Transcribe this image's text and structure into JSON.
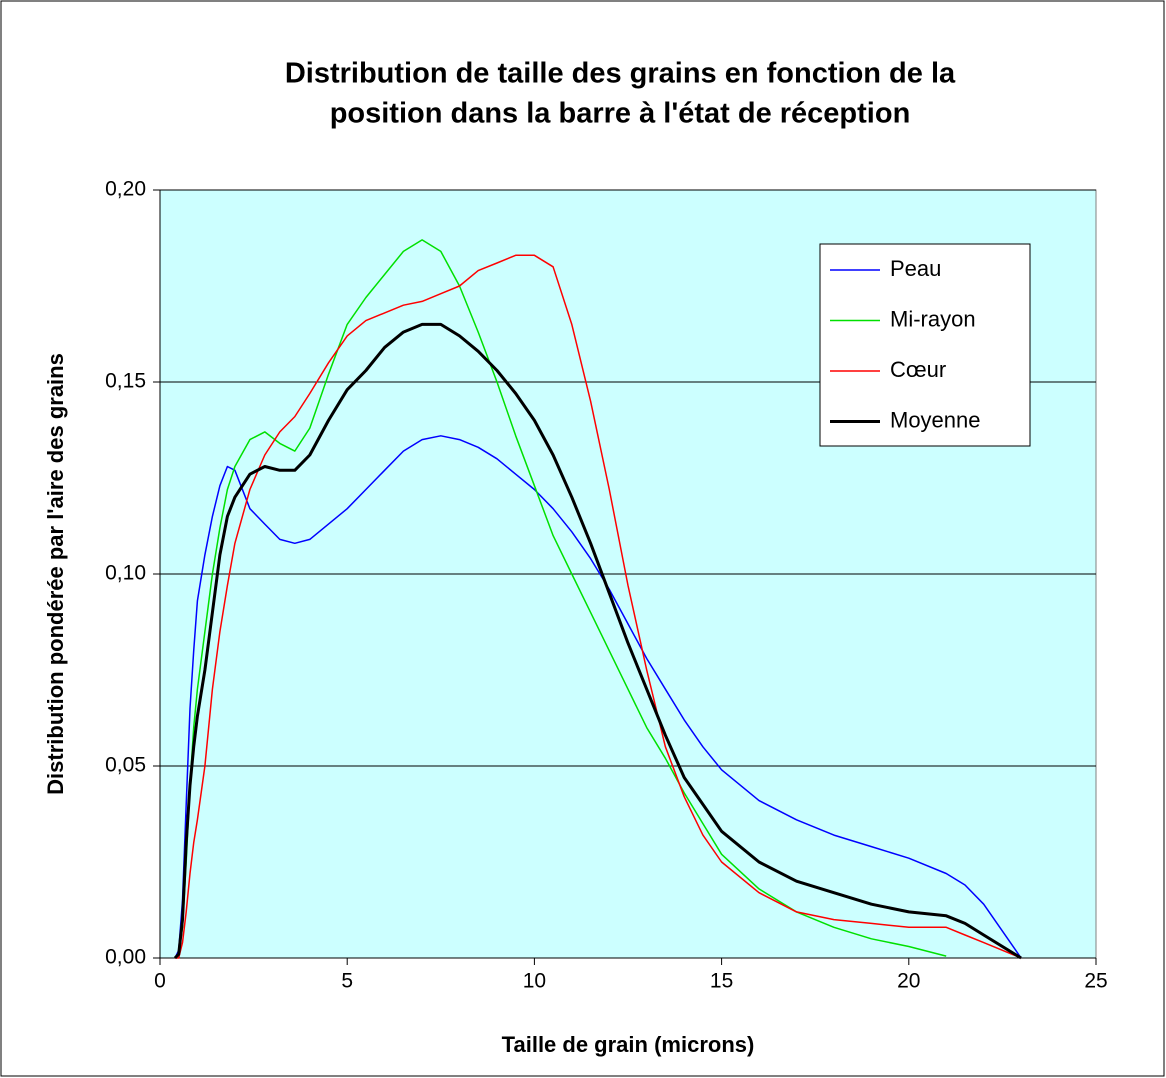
{
  "chart_data": {
    "type": "line",
    "title": [
      "Distribution de taille des grains en fonction de la",
      "position dans la barre à l'état de réception"
    ],
    "xlabel": "Taille de grain (microns)",
    "ylabel": "Distribution pondérée par l'aire des grains",
    "x": [
      0.4,
      0.5,
      0.6,
      0.7,
      0.8,
      0.9,
      1.0,
      1.2,
      1.4,
      1.6,
      1.8,
      2.0,
      2.4,
      2.8,
      3.2,
      3.6,
      4.0,
      4.5,
      5,
      5.5,
      6,
      6.5,
      7,
      7.5,
      8,
      8.5,
      9,
      9.5,
      10,
      10.5,
      11,
      11.5,
      12,
      12.5,
      13,
      13.5,
      14,
      14.5,
      15,
      16,
      17,
      18,
      19,
      20,
      21,
      21.5,
      22,
      23
    ],
    "series": [
      {
        "name": "Peau",
        "color": "#0000ff",
        "width": 1.5,
        "values": [
          0,
          0.002,
          0.015,
          0.04,
          0.065,
          0.08,
          0.093,
          0.105,
          0.115,
          0.123,
          0.128,
          0.127,
          0.117,
          0.113,
          0.109,
          0.108,
          0.109,
          0.113,
          0.117,
          0.122,
          0.127,
          0.132,
          0.135,
          0.136,
          0.135,
          0.133,
          0.13,
          0.126,
          0.122,
          0.117,
          0.111,
          0.104,
          0.096,
          0.087,
          0.078,
          0.07,
          0.062,
          0.055,
          0.049,
          0.041,
          0.036,
          0.032,
          0.029,
          0.026,
          0.022,
          0.019,
          0.014,
          0
        ]
      },
      {
        "name": "Mi-rayon",
        "color": "#00e000",
        "width": 1.5,
        "values": [
          0,
          0.001,
          0.008,
          0.025,
          0.045,
          0.06,
          0.07,
          0.085,
          0.1,
          0.112,
          0.122,
          0.128,
          0.135,
          0.137,
          0.134,
          0.132,
          0.138,
          0.152,
          0.165,
          0.172,
          0.178,
          0.184,
          0.187,
          0.184,
          0.175,
          0.163,
          0.15,
          0.136,
          0.123,
          0.11,
          0.1,
          0.09,
          0.08,
          0.07,
          0.06,
          0.052,
          0.043,
          0.035,
          0.027,
          0.018,
          0.012,
          0.008,
          0.005,
          0.003,
          0.0005,
          null,
          null,
          null
        ]
      },
      {
        "name": "Cœur",
        "color": "#ff0000",
        "width": 1.5,
        "values": [
          0,
          0,
          0.004,
          0.012,
          0.022,
          0.03,
          0.036,
          0.05,
          0.07,
          0.085,
          0.097,
          0.108,
          0.122,
          0.131,
          0.137,
          0.141,
          0.147,
          0.155,
          0.162,
          0.166,
          0.168,
          0.17,
          0.171,
          0.173,
          0.175,
          0.179,
          0.181,
          0.183,
          0.183,
          0.18,
          0.165,
          0.145,
          0.122,
          0.097,
          0.075,
          0.055,
          0.042,
          0.032,
          0.025,
          0.017,
          0.012,
          0.01,
          0.009,
          0.008,
          0.008,
          0.006,
          0.004,
          0
        ]
      },
      {
        "name": "Moyenne",
        "color": "#000000",
        "width": 3,
        "values": [
          0,
          0.001,
          0.01,
          0.03,
          0.045,
          0.055,
          0.063,
          0.075,
          0.09,
          0.105,
          0.115,
          0.12,
          0.126,
          0.128,
          0.127,
          0.127,
          0.131,
          0.14,
          0.148,
          0.153,
          0.159,
          0.163,
          0.165,
          0.165,
          0.162,
          0.158,
          0.153,
          0.147,
          0.14,
          0.131,
          0.12,
          0.108,
          0.095,
          0.082,
          0.07,
          0.058,
          0.047,
          0.04,
          0.033,
          0.025,
          0.02,
          0.017,
          0.014,
          0.012,
          0.011,
          0.009,
          0.006,
          0
        ]
      }
    ],
    "xlim": [
      0,
      25
    ],
    "xticks": [
      0,
      5,
      10,
      15,
      20,
      25
    ],
    "ylim": [
      0,
      0.2
    ],
    "yticks": [
      {
        "value": 0,
        "label": "0,00"
      },
      {
        "value": 0.05,
        "label": "0,05"
      },
      {
        "value": 0.1,
        "label": "0,10"
      },
      {
        "value": 0.15,
        "label": "0,15"
      },
      {
        "value": 0.2,
        "label": "0,20"
      }
    ],
    "grid": true,
    "legend": "upper right",
    "plot_background": "#ccffff"
  }
}
